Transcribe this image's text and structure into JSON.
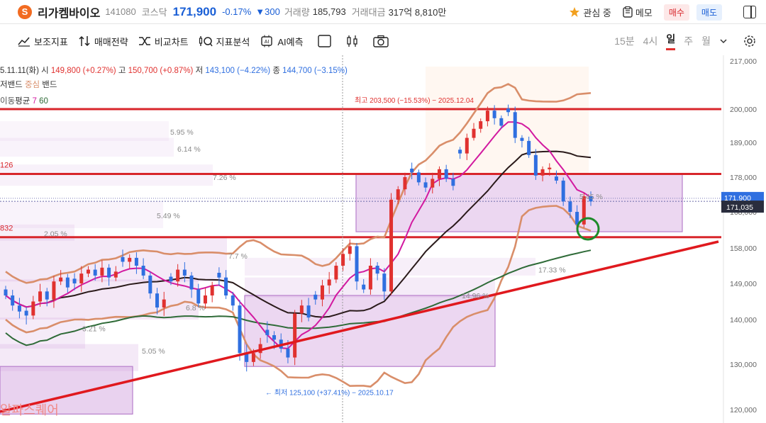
{
  "header": {
    "logo_letter": "S",
    "stock_name": "리가켐바이오",
    "code": "141080",
    "market": "코스닥",
    "price": "171,900",
    "change_pct": "-0.17%",
    "change_amt": "▼300",
    "volume_label": "거래량",
    "volume": "185,793",
    "amount_label": "거래대금",
    "amount": "317억 8,810만",
    "watch_label": "관심 중",
    "memo_label": "메모",
    "buy_label": "매수",
    "sell_label": "매도"
  },
  "toolbar": {
    "items": [
      "보조지표",
      "매매전략",
      "비교차트",
      "지표분석",
      "AI예측"
    ],
    "timeframes": [
      "15분",
      "4시",
      "일",
      "주",
      "월"
    ],
    "active_timeframe": "일"
  },
  "legend": {
    "ohlc_line": {
      "date": "5.11.11(화)",
      "open_label": "시",
      "open": "149,800 (+0.27%)",
      "high_label": "고",
      "high": "150,700 (+0.87%)",
      "low_label": "저",
      "low": "143,100 (−4.22%)",
      "close_label": "종",
      "close": "144,700 (−3.15%)"
    },
    "band_label_a": "저밴드",
    "band_label_b": "중심",
    "band_label_c": "밴드",
    "ma_label": "평균",
    "ma_prefix": "이동",
    "ma_periods": [
      "7",
      "60"
    ]
  },
  "colors": {
    "up": "#e0312f",
    "down": "#2f6fe0",
    "band": "#d98e6a",
    "ma7": "#d21aa0",
    "ma_mid": "#2a1a1a",
    "ma60": "#2f6b38",
    "zone": "#cf9bdb",
    "hline": "#d8262b"
  },
  "chart_data": {
    "type": "candlestick",
    "y_axis": {
      "ticks": [
        {
          "label": "217,000",
          "value": 217000
        },
        {
          "label": "200,000",
          "value": 200000
        },
        {
          "label": "189,000",
          "value": 189000
        },
        {
          "label": "178,000",
          "value": 178000
        },
        {
          "label": "168,000",
          "value": 168000
        },
        {
          "label": "158,000",
          "value": 158000
        },
        {
          "label": "149,000",
          "value": 149000
        },
        {
          "label": "140,000",
          "value": 140000
        },
        {
          "label": "130,000",
          "value": 130000
        },
        {
          "label": "120,000",
          "value": 120000
        }
      ],
      "current_price_label": "171,900",
      "current_price_value": 171900,
      "crosshair_label": "171,035",
      "crosshair_value": 171035
    },
    "horizontal_lines": [
      {
        "value": 200000
      },
      {
        "value": 179000,
        "label": "126"
      },
      {
        "value": 161000,
        "label": "832"
      }
    ],
    "high_annotation": "최고 203,500 (−15.53%) − 2025.12.04",
    "high_value": 203500,
    "low_annotation": "최저 125,100 (+37.41%) − 2025.10.17",
    "low_value": 125100,
    "profile_labels": [
      {
        "label": "5.95 %",
        "value": 192500
      },
      {
        "label": "6.14 %",
        "value": 187000
      },
      {
        "label": "7.26 %",
        "value": 178000
      },
      {
        "label": "5.49 %",
        "value": 167000
      },
      {
        "label": "2.05 %",
        "value": 162000
      },
      {
        "label": "7.7 %",
        "value": 156000
      },
      {
        "label": "6.8 %",
        "value": 143000
      },
      {
        "label": "3.21 %",
        "value": 138000
      },
      {
        "label": "5.05 %",
        "value": 133000
      },
      {
        "label": "17.33 %",
        "value": 152500
      },
      {
        "label": "14.96 %",
        "value": 146000
      },
      {
        "label": "5.45 %",
        "value": 172500
      }
    ],
    "watermark": "알파스퀘어"
  }
}
